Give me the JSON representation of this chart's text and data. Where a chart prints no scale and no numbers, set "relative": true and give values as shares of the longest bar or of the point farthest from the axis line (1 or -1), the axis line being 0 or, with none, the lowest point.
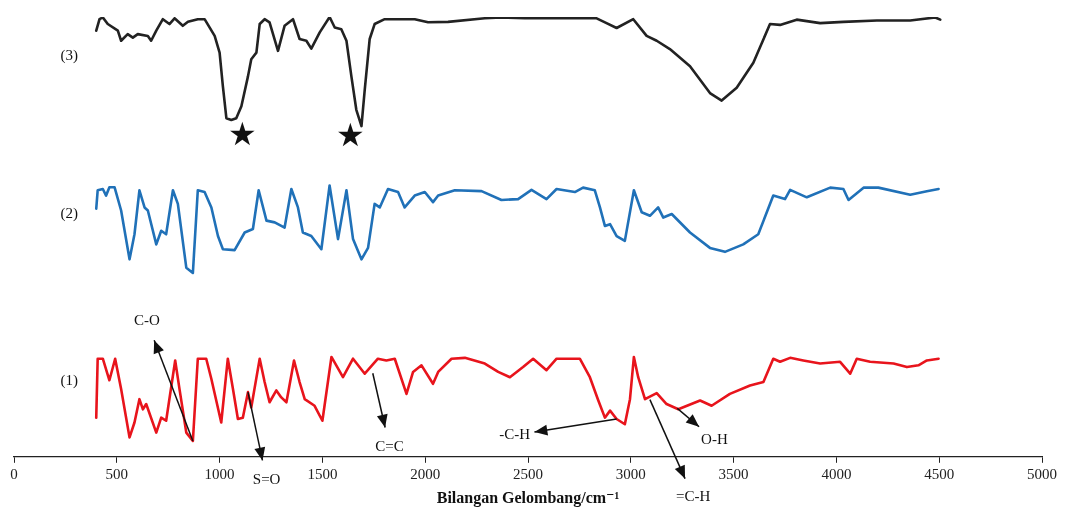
{
  "chart_data": {
    "type": "line",
    "xlabel": "Bilangan Gelombang/cm⁻¹",
    "relative": true,
    "xlim": [
      0,
      5000
    ],
    "xticks": [
      0,
      500,
      1000,
      1500,
      2000,
      2500,
      3000,
      3500,
      4000,
      4500,
      5000
    ],
    "grid": false,
    "legend": false,
    "marker": "none",
    "line_style": "solid",
    "series": [
      {
        "name": "(1)",
        "color": "#e8141c",
        "x": [
          400,
          407,
          432,
          464,
          492,
          521,
          562,
          586,
          610,
          627,
          643,
          692,
          716,
          740,
          784,
          805,
          838,
          870,
          894,
          935,
          960,
          1008,
          1040,
          1065,
          1089,
          1113,
          1138,
          1154,
          1195,
          1219,
          1243,
          1276,
          1300,
          1325,
          1362,
          1389,
          1414,
          1462,
          1500,
          1544,
          1600,
          1649,
          1706,
          1770,
          1811,
          1852,
          1909,
          1941,
          1982,
          2038,
          2063,
          2128,
          2193,
          2290,
          2355,
          2412,
          2476,
          2525,
          2590,
          2639,
          2752,
          2801,
          2842,
          2874,
          2899,
          2931,
          2971,
          2996,
          3015,
          3036,
          3069,
          3126,
          3174,
          3231,
          3337,
          3393,
          3482,
          3580,
          3645,
          3693,
          3726,
          3775,
          3839,
          3921,
          4018,
          4067,
          4099,
          4164,
          4278,
          4343,
          4399,
          4440,
          4497
        ],
        "values": [
          0.089,
          0.223,
          0.223,
          0.174,
          0.223,
          0.154,
          0.044,
          0.078,
          0.131,
          0.108,
          0.12,
          0.055,
          0.089,
          0.082,
          0.219,
          0.154,
          0.055,
          0.036,
          0.223,
          0.223,
          0.177,
          0.078,
          0.223,
          0.154,
          0.086,
          0.089,
          0.147,
          0.112,
          0.223,
          0.17,
          0.124,
          0.151,
          0.135,
          0.124,
          0.219,
          0.17,
          0.131,
          0.116,
          0.082,
          0.227,
          0.181,
          0.223,
          0.189,
          0.223,
          0.219,
          0.223,
          0.143,
          0.193,
          0.208,
          0.166,
          0.193,
          0.223,
          0.225,
          0.212,
          0.193,
          0.181,
          0.204,
          0.223,
          0.197,
          0.223,
          0.223,
          0.181,
          0.128,
          0.089,
          0.105,
          0.086,
          0.074,
          0.131,
          0.227,
          0.181,
          0.131,
          0.145,
          0.12,
          0.108,
          0.128,
          0.116,
          0.143,
          0.162,
          0.17,
          0.223,
          0.216,
          0.225,
          0.219,
          0.212,
          0.216,
          0.189,
          0.223,
          0.216,
          0.212,
          0.204,
          0.208,
          0.219,
          0.223
        ]
      },
      {
        "name": "(2)",
        "color": "#2071b8",
        "x": [
          400,
          407,
          432,
          448,
          464,
          489,
          521,
          562,
          586,
          610,
          635,
          651,
          692,
          716,
          740,
          773,
          797,
          838,
          870,
          894,
          927,
          960,
          992,
          1016,
          1073,
          1122,
          1162,
          1190,
          1228,
          1268,
          1316,
          1349,
          1381,
          1405,
          1446,
          1495,
          1535,
          1576,
          1617,
          1649,
          1690,
          1722,
          1754,
          1779,
          1819,
          1868,
          1900,
          1949,
          1998,
          2038,
          2063,
          2144,
          2274,
          2371,
          2452,
          2517,
          2590,
          2639,
          2728,
          2768,
          2825,
          2850,
          2874,
          2899,
          2931,
          2971,
          3015,
          3053,
          3093,
          3133,
          3158,
          3199,
          3288,
          3385,
          3458,
          3547,
          3620,
          3693,
          3750,
          3775,
          3856,
          3970,
          4034,
          4059,
          4132,
          4204,
          4359,
          4440,
          4497
        ],
        "values": [
          0.564,
          0.606,
          0.609,
          0.594,
          0.613,
          0.613,
          0.56,
          0.449,
          0.506,
          0.606,
          0.567,
          0.56,
          0.483,
          0.514,
          0.506,
          0.606,
          0.575,
          0.43,
          0.418,
          0.606,
          0.602,
          0.567,
          0.502,
          0.472,
          0.47,
          0.51,
          0.518,
          0.606,
          0.537,
          0.533,
          0.521,
          0.609,
          0.567,
          0.51,
          0.502,
          0.472,
          0.617,
          0.495,
          0.606,
          0.495,
          0.449,
          0.475,
          0.575,
          0.567,
          0.609,
          0.602,
          0.567,
          0.594,
          0.602,
          0.579,
          0.594,
          0.606,
          0.604,
          0.584,
          0.586,
          0.607,
          0.586,
          0.609,
          0.602,
          0.612,
          0.606,
          0.567,
          0.525,
          0.529,
          0.502,
          0.491,
          0.606,
          0.556,
          0.548,
          0.567,
          0.544,
          0.552,
          0.51,
          0.475,
          0.466,
          0.483,
          0.506,
          0.594,
          0.586,
          0.607,
          0.59,
          0.612,
          0.609,
          0.584,
          0.612,
          0.612,
          0.596,
          0.604,
          0.609
        ]
      },
      {
        "name": "(3)",
        "color": "#222222",
        "x": [
          400,
          416,
          432,
          456,
          505,
          521,
          553,
          578,
          602,
          651,
          667,
          692,
          724,
          756,
          781,
          821,
          846,
          894,
          927,
          976,
          1000,
          1016,
          1033,
          1057,
          1081,
          1106,
          1138,
          1154,
          1179,
          1195,
          1219,
          1243,
          1284,
          1316,
          1357,
          1389,
          1422,
          1446,
          1487,
          1535,
          1560,
          1592,
          1617,
          1641,
          1665,
          1690,
          1706,
          1730,
          1754,
          1803,
          1949,
          2014,
          2111,
          2290,
          2371,
          2485,
          2834,
          2882,
          2931,
          3012,
          3077,
          3126,
          3190,
          3288,
          3385,
          3442,
          3515,
          3596,
          3677,
          3726,
          3807,
          3921,
          4034,
          4197,
          4359,
          4481,
          4505
        ],
        "values": [
          0.969,
          0.995,
          0.999,
          0.984,
          0.969,
          0.946,
          0.961,
          0.953,
          0.961,
          0.957,
          0.946,
          0.969,
          0.995,
          0.984,
          0.997,
          0.98,
          0.989,
          0.995,
          0.995,
          0.957,
          0.919,
          0.842,
          0.77,
          0.766,
          0.77,
          0.797,
          0.865,
          0.904,
          0.919,
          0.984,
          0.995,
          0.988,
          0.923,
          0.98,
          0.995,
          0.95,
          0.946,
          0.928,
          0.965,
          1.0,
          0.976,
          0.972,
          0.946,
          0.865,
          0.789,
          0.752,
          0.835,
          0.95,
          0.984,
          0.995,
          0.995,
          0.988,
          0.989,
          0.997,
          0.999,
          0.997,
          0.997,
          0.986,
          0.975,
          0.995,
          0.957,
          0.946,
          0.927,
          0.888,
          0.827,
          0.81,
          0.839,
          0.896,
          0.984,
          0.982,
          0.994,
          0.986,
          0.989,
          0.992,
          0.992,
          0.999,
          0.994
        ]
      }
    ],
    "annotations": [
      {
        "text": "C-O",
        "x": 870,
        "y": 0.036
      },
      {
        "text": "S=O",
        "x": 1138,
        "y": 0.147
      },
      {
        "text": "C=C",
        "x": 1745,
        "y": 0.19
      },
      {
        "text": "-C-H",
        "x": 2931,
        "y": 0.086
      },
      {
        "text": "=C-H",
        "x": 3093,
        "y": 0.13
      },
      {
        "text": "O-H",
        "x": 3226,
        "y": 0.11
      },
      {
        "text": "★",
        "x": 1081,
        "y": 0.77
      },
      {
        "text": "★",
        "x": 1690,
        "y": 0.752
      }
    ]
  }
}
